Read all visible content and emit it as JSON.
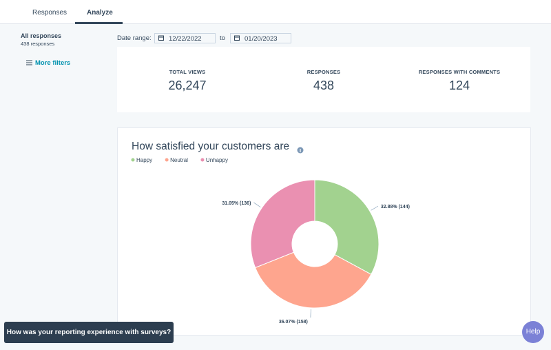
{
  "tabs": [
    "Responses",
    "Analyze"
  ],
  "sidebar": {
    "title": "All responses",
    "subtitle": "438 responses",
    "filters": "More filters"
  },
  "date_range": {
    "label": "Date range:",
    "from": "12/22/2022",
    "to_label": "to",
    "to": "01/20/2023"
  },
  "stats": [
    {
      "label": "TOTAL VIEWS",
      "value": "26,247"
    },
    {
      "label": "RESPONSES",
      "value": "438"
    },
    {
      "label": "RESPONSES WITH COMMENTS",
      "value": "124"
    }
  ],
  "chart_data": {
    "type": "donut",
    "title": "How satisfied your customers are",
    "categories": [
      "Happy",
      "Neutral",
      "Unhappy"
    ],
    "values": [
      32.88,
      36.07,
      31.05
    ],
    "value_labels": [
      "32.88% (144)",
      "36.07% (158)",
      "31.05% (136)"
    ],
    "colors": [
      "#a2d28f",
      "#fea58e",
      "#ea90b1"
    ]
  },
  "feedback": "How was your reporting experience with surveys?",
  "help": "Help"
}
